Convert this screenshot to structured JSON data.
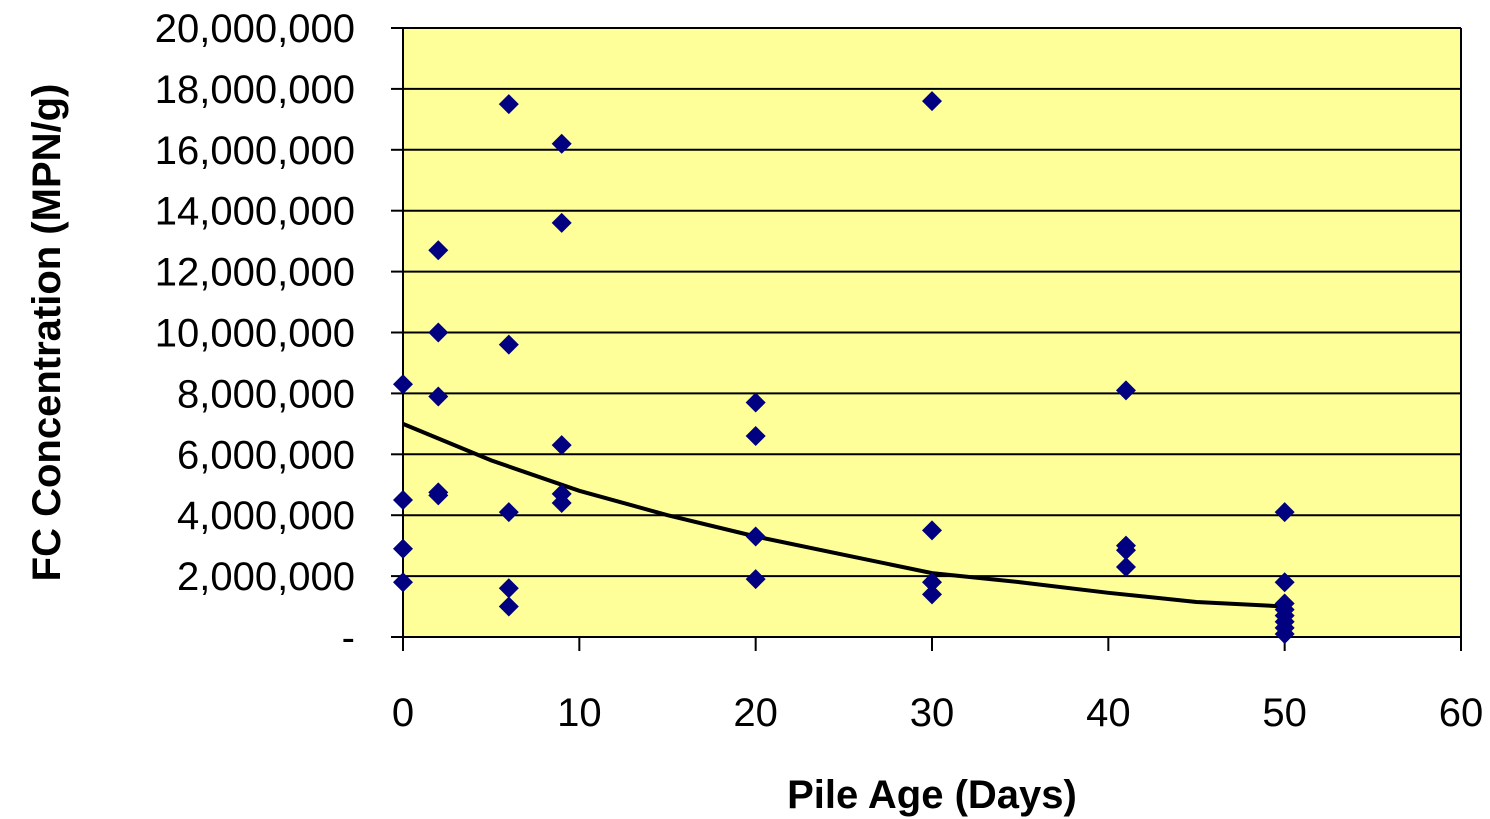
{
  "chart_data": {
    "type": "scatter",
    "title": "",
    "xlabel": "Pile Age (Days)",
    "ylabel": "FC Concentration (MPN/g)",
    "xlim": [
      0,
      60
    ],
    "ylim": [
      0,
      20000000
    ],
    "x_ticks": [
      0,
      10,
      20,
      30,
      40,
      50,
      60
    ],
    "x_tick_labels": [
      "0",
      "10",
      "20",
      "30",
      "40",
      "50",
      "60"
    ],
    "y_ticks": [
      0,
      2000000,
      4000000,
      6000000,
      8000000,
      10000000,
      12000000,
      14000000,
      16000000,
      18000000,
      20000000
    ],
    "y_tick_labels": [
      "-",
      "2,000,000",
      "4,000,000",
      "6,000,000",
      "8,000,000",
      "10,000,000",
      "12,000,000",
      "14,000,000",
      "16,000,000",
      "18,000,000",
      "20,000,000"
    ],
    "grid": "horizontal",
    "legend": "none",
    "colors": {
      "plot_background": "#FFFF99",
      "marker": "#000080",
      "trendline": "#000000",
      "gridline": "#000000"
    },
    "series": [
      {
        "marker": "diamond",
        "points": [
          [
            0,
            8300000
          ],
          [
            0,
            4500000
          ],
          [
            0,
            2900000
          ],
          [
            0,
            1800000
          ],
          [
            2,
            12700000
          ],
          [
            2,
            10000000
          ],
          [
            2,
            7900000
          ],
          [
            2,
            4750000
          ],
          [
            2,
            4650000
          ],
          [
            6,
            17500000
          ],
          [
            6,
            9600000
          ],
          [
            6,
            4100000
          ],
          [
            6,
            1600000
          ],
          [
            6,
            1000000
          ],
          [
            9,
            16200000
          ],
          [
            9,
            13600000
          ],
          [
            9,
            6300000
          ],
          [
            9,
            4700000
          ],
          [
            9,
            4400000
          ],
          [
            20,
            7700000
          ],
          [
            20,
            6600000
          ],
          [
            20,
            3300000
          ],
          [
            20,
            1900000
          ],
          [
            30,
            17600000
          ],
          [
            30,
            3500000
          ],
          [
            30,
            1800000
          ],
          [
            30,
            1400000
          ],
          [
            41,
            8100000
          ],
          [
            41,
            3000000
          ],
          [
            41,
            2850000
          ],
          [
            41,
            2300000
          ],
          [
            50,
            4100000
          ],
          [
            50,
            1800000
          ],
          [
            50,
            1100000
          ],
          [
            50,
            900000
          ],
          [
            50,
            700000
          ],
          [
            50,
            500000
          ],
          [
            50,
            300000
          ],
          [
            50,
            100000
          ]
        ]
      }
    ],
    "trendline": {
      "type": "exponential",
      "points": [
        [
          0,
          7000000
        ],
        [
          5,
          5800000
        ],
        [
          10,
          4800000
        ],
        [
          15,
          4000000
        ],
        [
          20,
          3300000
        ],
        [
          25,
          2700000
        ],
        [
          30,
          2100000
        ],
        [
          35,
          1800000
        ],
        [
          40,
          1450000
        ],
        [
          45,
          1150000
        ],
        [
          50,
          1000000
        ]
      ]
    }
  }
}
